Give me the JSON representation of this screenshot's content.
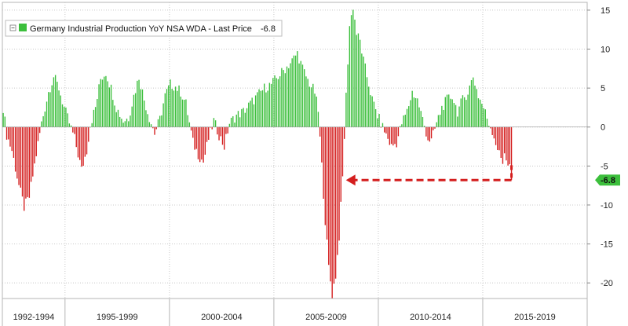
{
  "chart_data": {
    "type": "bar",
    "title": "Germany Industrial Production YoY NSA WDA",
    "legend": {
      "label": "Germany Industrial Production YoY NSA WDA - Last Price",
      "value": "-6.8",
      "placement": "top-left",
      "positive_color": "#3cbf3c",
      "negative_color": "#d41e1e"
    },
    "last_price": -6.8,
    "last_price_label": "-6.8",
    "ylim": [
      -22,
      16
    ],
    "y_ticks": [
      15,
      10,
      5,
      0,
      -5,
      -10,
      -15,
      -20
    ],
    "y_tick_labels": [
      "15",
      "10",
      "5",
      "0",
      "-5",
      "-10",
      "-15",
      "-20"
    ],
    "x_periods": [
      {
        "label": "1992-1994",
        "start": 0,
        "end": 36
      },
      {
        "label": "1995-1999",
        "start": 36,
        "end": 96
      },
      {
        "label": "2000-2004",
        "start": 96,
        "end": 156
      },
      {
        "label": "2005-2009",
        "start": 156,
        "end": 216
      },
      {
        "label": "2010-2014",
        "start": 216,
        "end": 276
      },
      {
        "label": "2015-2019",
        "start": 276,
        "end": 336
      }
    ],
    "anchors": [
      [
        0,
        2.5
      ],
      [
        2,
        -1.0
      ],
      [
        5,
        -3.0
      ],
      [
        9,
        -7.5
      ],
      [
        12,
        -10.3
      ],
      [
        15,
        -9.0
      ],
      [
        19,
        -3.5
      ],
      [
        22,
        0.5
      ],
      [
        26,
        4.5
      ],
      [
        29,
        6.5
      ],
      [
        32,
        5.0
      ],
      [
        35,
        2.5
      ],
      [
        38,
        0.5
      ],
      [
        41,
        -1.5
      ],
      [
        45,
        -5.5
      ],
      [
        48,
        -3.0
      ],
      [
        50,
        0.3
      ],
      [
        53,
        2.5
      ],
      [
        56,
        6.2
      ],
      [
        59,
        7.0
      ],
      [
        62,
        5.0
      ],
      [
        65,
        2.5
      ],
      [
        69,
        0.8
      ],
      [
        72,
        1.2
      ],
      [
        75,
        4.0
      ],
      [
        78,
        6.5
      ],
      [
        81,
        3.5
      ],
      [
        84,
        1.2
      ],
      [
        87,
        -0.8
      ],
      [
        90,
        1.0
      ],
      [
        93,
        4.0
      ],
      [
        96,
        5.5
      ],
      [
        99,
        5.2
      ],
      [
        102,
        4.5
      ],
      [
        105,
        3.0
      ],
      [
        107,
        0.5
      ],
      [
        109,
        -2.0
      ],
      [
        112,
        -3.5
      ],
      [
        115,
        -4.5
      ],
      [
        118,
        -1.5
      ],
      [
        121,
        0.8
      ],
      [
        124,
        -1.0
      ],
      [
        127,
        -2.5
      ],
      [
        130,
        0.5
      ],
      [
        134,
        1.5
      ],
      [
        138,
        2.0
      ],
      [
        142,
        3.0
      ],
      [
        146,
        4.0
      ],
      [
        150,
        5.0
      ],
      [
        154,
        5.5
      ],
      [
        158,
        6.5
      ],
      [
        162,
        7.5
      ],
      [
        166,
        8.5
      ],
      [
        169,
        9.5
      ],
      [
        172,
        7.5
      ],
      [
        175,
        6.0
      ],
      [
        179,
        4.5
      ],
      [
        181,
        2.0
      ],
      [
        183,
        -5.0
      ],
      [
        185,
        -12.0
      ],
      [
        187,
        -18.0
      ],
      [
        189,
        -21.5
      ],
      [
        191,
        -19.0
      ],
      [
        193,
        -14.0
      ],
      [
        195,
        -6.5
      ],
      [
        197,
        4.0
      ],
      [
        199,
        13.0
      ],
      [
        201,
        15.5
      ],
      [
        203,
        12.0
      ],
      [
        205,
        11.0
      ],
      [
        207,
        8.5
      ],
      [
        209,
        6.5
      ],
      [
        212,
        3.5
      ],
      [
        215,
        1.5
      ],
      [
        218,
        0.0
      ],
      [
        220,
        -1.0
      ],
      [
        223,
        -2.5
      ],
      [
        226,
        -2.0
      ],
      [
        229,
        0.5
      ],
      [
        232,
        2.0
      ],
      [
        235,
        4.5
      ],
      [
        238,
        3.5
      ],
      [
        241,
        1.0
      ],
      [
        244,
        -1.5
      ],
      [
        246,
        -1.8
      ],
      [
        249,
        0.5
      ],
      [
        252,
        2.5
      ],
      [
        255,
        3.5
      ],
      [
        258,
        4.0
      ],
      [
        261,
        2.0
      ],
      [
        264,
        3.5
      ],
      [
        267,
        4.5
      ],
      [
        270,
        6.5
      ],
      [
        273,
        4.0
      ],
      [
        276,
        2.5
      ],
      [
        279,
        0.5
      ],
      [
        281,
        -0.5
      ],
      [
        283,
        -2.0
      ],
      [
        285,
        -3.5
      ],
      [
        287,
        -4.5
      ],
      [
        288,
        -3.0
      ],
      [
        290,
        -5.2
      ],
      [
        291,
        -4.8
      ],
      [
        292,
        -6.8
      ]
    ]
  }
}
